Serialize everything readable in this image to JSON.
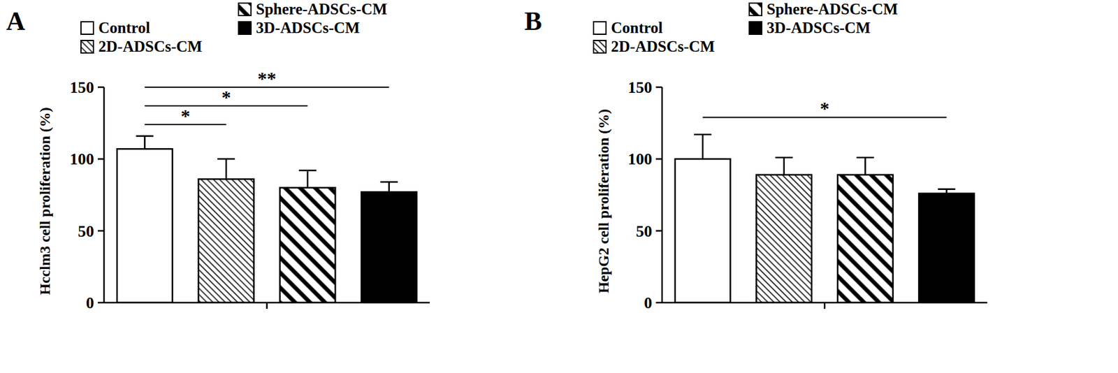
{
  "chart_data": [
    {
      "type": "bar",
      "panel": "A",
      "y_label": "Hcclm3 cell proliferation (%)",
      "categories": [
        "Control",
        "2D-ADSCs-CM",
        "Sphere-ADSCs-CM",
        "3D-ADSCs-CM"
      ],
      "values": [
        107,
        86,
        80,
        77
      ],
      "errors": [
        9,
        14,
        12,
        7
      ],
      "colors": [
        "#ffffff",
        "#ffffff",
        "#ffffff",
        "#000000"
      ],
      "ylim": [
        0,
        150
      ],
      "yticks": [
        0,
        50,
        100,
        150
      ],
      "tick_labels": "y",
      "annotations": [
        {
          "text": "*",
          "from": 0,
          "to": 1,
          "y": 124
        },
        {
          "text": "*",
          "from": 0,
          "to": 2,
          "y": 137
        },
        {
          "text": "**",
          "from": 0,
          "to": 3,
          "y": 150
        }
      ]
    },
    {
      "type": "bar",
      "panel": "B",
      "y_label": "HepG2 cell proliferation (%)",
      "categories": [
        "Control",
        "2D-ADSCs-CM",
        "Sphere-ADSCs-CM",
        "3D-ADSCs-CM"
      ],
      "values": [
        100,
        89,
        89,
        76
      ],
      "errors": [
        17,
        12,
        12,
        3
      ],
      "colors": [
        "#ffffff",
        "#ffffff",
        "#ffffff",
        "#000000"
      ],
      "ylim": [
        0,
        150
      ],
      "yticks": [
        0,
        50,
        100,
        150
      ],
      "tick_labels": "y",
      "annotations": [
        {
          "text": "*",
          "from": 0,
          "to": 3,
          "y": 129
        }
      ]
    }
  ]
}
